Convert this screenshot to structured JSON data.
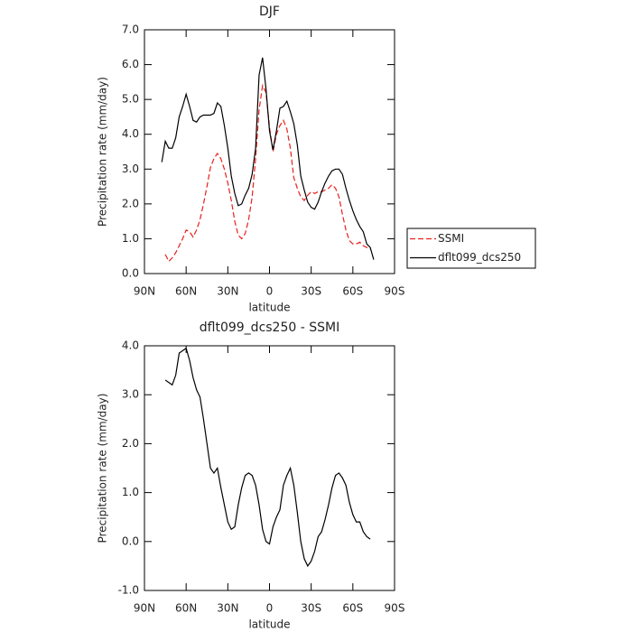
{
  "chart_data": [
    {
      "type": "line",
      "title": "DJF",
      "xlabel": "latitude",
      "ylabel": "Precipitation rate (mm/day)",
      "x": [
        77.5,
        75,
        72.5,
        70,
        67.5,
        65,
        62.5,
        60,
        57.5,
        55,
        52.5,
        50,
        47.5,
        45,
        42.5,
        40,
        37.5,
        35,
        32.5,
        30,
        27.5,
        25,
        22.5,
        20,
        17.5,
        15,
        12.5,
        10,
        7.5,
        5,
        2.5,
        0,
        -2.5,
        -5,
        -7.5,
        -10,
        -12.5,
        -15,
        -17.5,
        -20,
        -22.5,
        -25,
        -27.5,
        -30,
        -32.5,
        -35,
        -37.5,
        -40,
        -42.5,
        -45,
        -47.5,
        -50,
        -52.5,
        -55,
        -57.5,
        -60,
        -62.5,
        -65,
        -67.5,
        -70,
        -72.5,
        -75
      ],
      "series": [
        {
          "name": "SSMI",
          "color": "#e8201c",
          "style": "dashed",
          "values": [
            null,
            0.55,
            0.35,
            0.45,
            0.6,
            0.8,
            1.0,
            1.25,
            1.2,
            1.05,
            1.25,
            1.55,
            2.0,
            2.5,
            3.05,
            3.3,
            3.45,
            3.3,
            3.0,
            2.6,
            2.1,
            1.5,
            1.1,
            1.0,
            1.15,
            1.55,
            2.2,
            3.3,
            4.7,
            5.4,
            5.2,
            4.2,
            3.5,
            4.0,
            4.25,
            4.4,
            4.15,
            3.6,
            2.75,
            2.45,
            2.2,
            2.1,
            2.25,
            2.35,
            2.3,
            2.35,
            2.35,
            2.4,
            2.45,
            2.55,
            2.45,
            2.2,
            1.7,
            1.25,
            0.95,
            0.85,
            0.85,
            0.9,
            0.8,
            0.75,
            0.7,
            null
          ]
        },
        {
          "name": "dflt099_dcs250",
          "color": "#000000",
          "style": "solid",
          "values": [
            3.2,
            3.8,
            3.6,
            3.6,
            3.9,
            4.5,
            4.8,
            5.15,
            4.8,
            4.4,
            4.35,
            4.5,
            4.55,
            4.55,
            4.55,
            4.6,
            4.9,
            4.8,
            4.25,
            3.6,
            2.8,
            2.3,
            1.95,
            2.0,
            2.25,
            2.45,
            2.85,
            3.6,
            5.7,
            6.2,
            5.3,
            4.1,
            3.55,
            4.1,
            4.75,
            4.8,
            4.95,
            4.65,
            4.3,
            3.7,
            2.8,
            2.4,
            2.05,
            1.9,
            1.85,
            2.05,
            2.35,
            2.6,
            2.8,
            2.95,
            3.0,
            3.0,
            2.85,
            2.45,
            2.1,
            1.8,
            1.55,
            1.35,
            1.2,
            0.85,
            0.75,
            0.4
          ]
        }
      ],
      "xlim": [
        90,
        -90
      ],
      "xticks": [
        {
          "value": 90,
          "label": "90N"
        },
        {
          "value": 60,
          "label": "60N"
        },
        {
          "value": 30,
          "label": "30N"
        },
        0,
        {
          "value": -30,
          "label": "30S"
        },
        {
          "value": -60,
          "label": "60S"
        },
        {
          "value": -90,
          "label": "90S"
        }
      ],
      "ylim": [
        0,
        7
      ],
      "yticks": [
        {
          "value": 0,
          "label": "0.0"
        },
        {
          "value": 1,
          "label": "1.0"
        },
        {
          "value": 2,
          "label": "2.0"
        },
        {
          "value": 3,
          "label": "3.0"
        },
        {
          "value": 4,
          "label": "4.0"
        },
        {
          "value": 5,
          "label": "5.0"
        },
        {
          "value": 6,
          "label": "6.0"
        },
        {
          "value": 7,
          "label": "7.0"
        }
      ],
      "legend": "right"
    },
    {
      "type": "line",
      "title": "dflt099_dcs250 - SSMI",
      "xlabel": "latitude",
      "ylabel": "Precipitation rate (mm/day)",
      "x": [
        77.5,
        75,
        72.5,
        70,
        67.5,
        65,
        62.5,
        60,
        57.5,
        55,
        52.5,
        50,
        47.5,
        45,
        42.5,
        40,
        37.5,
        35,
        32.5,
        30,
        27.5,
        25,
        22.5,
        20,
        17.5,
        15,
        12.5,
        10,
        7.5,
        5,
        2.5,
        0,
        -2.5,
        -5,
        -7.5,
        -10,
        -12.5,
        -15,
        -17.5,
        -20,
        -22.5,
        -25,
        -27.5,
        -30,
        -32.5,
        -35,
        -37.5,
        -40,
        -42.5,
        -45,
        -47.5,
        -50,
        -52.5,
        -55,
        -57.5,
        -60,
        -62.5,
        -65,
        -67.5,
        -70,
        -72.5,
        -75
      ],
      "series": [
        {
          "name": "dflt099_dcs250 - SSMI",
          "color": "#000000",
          "style": "solid",
          "values": [
            null,
            3.3,
            3.25,
            3.2,
            3.4,
            3.85,
            3.9,
            3.95,
            3.7,
            3.35,
            3.1,
            2.95,
            2.5,
            2.0,
            1.5,
            1.4,
            1.5,
            1.1,
            0.75,
            0.4,
            0.25,
            0.3,
            0.75,
            1.1,
            1.35,
            1.4,
            1.35,
            1.15,
            0.75,
            0.25,
            0.0,
            -0.05,
            0.3,
            0.5,
            0.65,
            1.15,
            1.35,
            1.5,
            1.15,
            0.6,
            0.0,
            -0.35,
            -0.5,
            -0.4,
            -0.2,
            0.1,
            0.2,
            0.45,
            0.75,
            1.1,
            1.35,
            1.4,
            1.3,
            1.15,
            0.8,
            0.55,
            0.4,
            0.4,
            0.2,
            0.1,
            0.05,
            null
          ]
        }
      ],
      "xlim": [
        90,
        -90
      ],
      "xticks": [
        {
          "value": 90,
          "label": "90N"
        },
        {
          "value": 60,
          "label": "60N"
        },
        {
          "value": 30,
          "label": "30N"
        },
        0,
        {
          "value": -30,
          "label": "30S"
        },
        {
          "value": -60,
          "label": "60S"
        },
        {
          "value": -90,
          "label": "90S"
        }
      ],
      "ylim": [
        -1,
        4
      ],
      "yticks": [
        {
          "value": -1,
          "label": "-1.0"
        },
        {
          "value": 0,
          "label": "0.0"
        },
        {
          "value": 1,
          "label": "1.0"
        },
        {
          "value": 2,
          "label": "2.0"
        },
        {
          "value": 3,
          "label": "3.0"
        },
        {
          "value": 4,
          "label": "4.0"
        }
      ]
    }
  ]
}
